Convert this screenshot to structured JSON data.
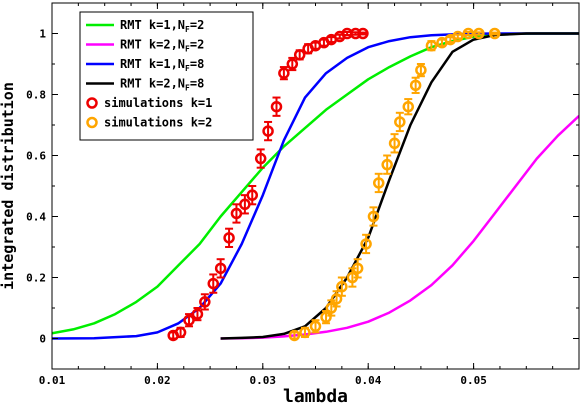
{
  "chart_data": {
    "type": "line",
    "xlabel": "lambda",
    "ylabel": "integrated distribution",
    "xlim": [
      0.01,
      0.06
    ],
    "ylim": [
      -0.1,
      1.1
    ],
    "xticks": [
      {
        "value": 0.01,
        "label": "0.01"
      },
      {
        "value": 0.02,
        "label": "0.02"
      },
      {
        "value": 0.03,
        "label": "0.03"
      },
      {
        "value": 0.04,
        "label": "0.04"
      },
      {
        "value": 0.05,
        "label": "0.05"
      }
    ],
    "yticks": [
      {
        "value": 0,
        "label": "0"
      },
      {
        "value": 0.2,
        "label": "0.2"
      },
      {
        "value": 0.4,
        "label": "0.4"
      },
      {
        "value": 0.6,
        "label": "0.6"
      },
      {
        "value": 0.8,
        "label": "0.8"
      },
      {
        "value": 1,
        "label": "1"
      }
    ],
    "legend_position": "top-left",
    "series": [
      {
        "kind": "line",
        "legend": {
          "main": "RMT k=1,N",
          "sub": "F",
          "tail": "=2"
        },
        "color": "#00ee00",
        "x": [
          0.01,
          0.012,
          0.014,
          0.016,
          0.018,
          0.02,
          0.022,
          0.024,
          0.026,
          0.028,
          0.03,
          0.032,
          0.034,
          0.036,
          0.038,
          0.04,
          0.042,
          0.044,
          0.046,
          0.048,
          0.05,
          0.052,
          0.054,
          0.056,
          0.058,
          0.06
        ],
        "y": [
          0.017,
          0.03,
          0.05,
          0.08,
          0.12,
          0.17,
          0.24,
          0.31,
          0.4,
          0.48,
          0.56,
          0.63,
          0.69,
          0.75,
          0.8,
          0.85,
          0.89,
          0.925,
          0.955,
          0.975,
          0.99,
          0.996,
          0.999,
          1.0,
          1.0,
          1.0
        ]
      },
      {
        "kind": "line",
        "legend": {
          "main": "RMT k=2,N",
          "sub": "F",
          "tail": "=2"
        },
        "color": "#ff00ff",
        "x": [
          0.026,
          0.028,
          0.03,
          0.032,
          0.034,
          0.036,
          0.038,
          0.04,
          0.042,
          0.044,
          0.046,
          0.048,
          0.05,
          0.052,
          0.054,
          0.056,
          0.058,
          0.06
        ],
        "y": [
          0.0,
          0.001,
          0.003,
          0.007,
          0.013,
          0.022,
          0.035,
          0.055,
          0.085,
          0.125,
          0.175,
          0.24,
          0.32,
          0.41,
          0.5,
          0.59,
          0.665,
          0.73
        ]
      },
      {
        "kind": "line",
        "legend": {
          "main": "RMT k=1,N",
          "sub": "F",
          "tail": "=8"
        },
        "color": "#0000ff",
        "x": [
          0.01,
          0.014,
          0.018,
          0.02,
          0.022,
          0.024,
          0.026,
          0.028,
          0.03,
          0.031,
          0.032,
          0.034,
          0.036,
          0.038,
          0.04,
          0.042,
          0.044,
          0.046,
          0.048,
          0.05,
          0.052,
          0.055,
          0.06
        ],
        "y": [
          0.0,
          0.001,
          0.008,
          0.02,
          0.05,
          0.1,
          0.18,
          0.31,
          0.47,
          0.56,
          0.65,
          0.79,
          0.87,
          0.92,
          0.955,
          0.975,
          0.988,
          0.994,
          0.997,
          0.999,
          1.0,
          1.0,
          1.0
        ]
      },
      {
        "kind": "line",
        "legend": {
          "main": "RMT k=2,N",
          "sub": "F",
          "tail": "=8"
        },
        "color": "#000000",
        "x": [
          0.026,
          0.028,
          0.03,
          0.032,
          0.034,
          0.036,
          0.038,
          0.04,
          0.042,
          0.044,
          0.046,
          0.048,
          0.05,
          0.052,
          0.055,
          0.06
        ],
        "y": [
          0.0,
          0.002,
          0.005,
          0.015,
          0.04,
          0.1,
          0.2,
          0.33,
          0.52,
          0.7,
          0.84,
          0.94,
          0.98,
          0.995,
          1.0,
          1.0
        ]
      },
      {
        "kind": "points",
        "legend": {
          "main": "simulations k=1",
          "sub": "",
          "tail": ""
        },
        "color": "#ee0000",
        "x": [
          0.0215,
          0.0222,
          0.023,
          0.0238,
          0.0245,
          0.0253,
          0.026,
          0.0268,
          0.0275,
          0.0283,
          0.029,
          0.0298,
          0.0305,
          0.0313,
          0.032,
          0.0328,
          0.0335,
          0.0343,
          0.035,
          0.0358,
          0.0365,
          0.0373,
          0.038,
          0.0388,
          0.0395
        ],
        "y": [
          0.01,
          0.02,
          0.06,
          0.08,
          0.12,
          0.18,
          0.23,
          0.33,
          0.41,
          0.44,
          0.47,
          0.59,
          0.68,
          0.76,
          0.87,
          0.9,
          0.93,
          0.95,
          0.96,
          0.97,
          0.98,
          0.99,
          1.0,
          1.0,
          1.0
        ],
        "err": [
          0.01,
          0.015,
          0.02,
          0.02,
          0.025,
          0.03,
          0.03,
          0.03,
          0.03,
          0.03,
          0.03,
          0.03,
          0.03,
          0.03,
          0.02,
          0.02,
          0.015,
          0.015,
          0.01,
          0.01,
          0.008,
          0.006,
          0.005,
          0.004,
          0.003
        ]
      },
      {
        "kind": "points",
        "legend": {
          "main": "simulations k=2",
          "sub": "",
          "tail": ""
        },
        "color": "#ffa500",
        "x": [
          0.033,
          0.034,
          0.035,
          0.036,
          0.0365,
          0.037,
          0.0375,
          0.0385,
          0.039,
          0.0398,
          0.0405,
          0.041,
          0.0418,
          0.0425,
          0.043,
          0.0438,
          0.0445,
          0.045,
          0.046,
          0.047,
          0.0478,
          0.0485,
          0.0495,
          0.0505,
          0.052
        ],
        "y": [
          0.01,
          0.02,
          0.04,
          0.07,
          0.1,
          0.13,
          0.17,
          0.2,
          0.23,
          0.31,
          0.4,
          0.51,
          0.57,
          0.64,
          0.71,
          0.76,
          0.83,
          0.88,
          0.96,
          0.97,
          0.98,
          0.99,
          1.0,
          1.0,
          1.0
        ],
        "err": [
          0.01,
          0.015,
          0.02,
          0.02,
          0.025,
          0.025,
          0.03,
          0.03,
          0.03,
          0.03,
          0.03,
          0.03,
          0.03,
          0.03,
          0.03,
          0.025,
          0.025,
          0.02,
          0.015,
          0.01,
          0.008,
          0.006,
          0.005,
          0.004,
          0.003
        ]
      }
    ]
  }
}
